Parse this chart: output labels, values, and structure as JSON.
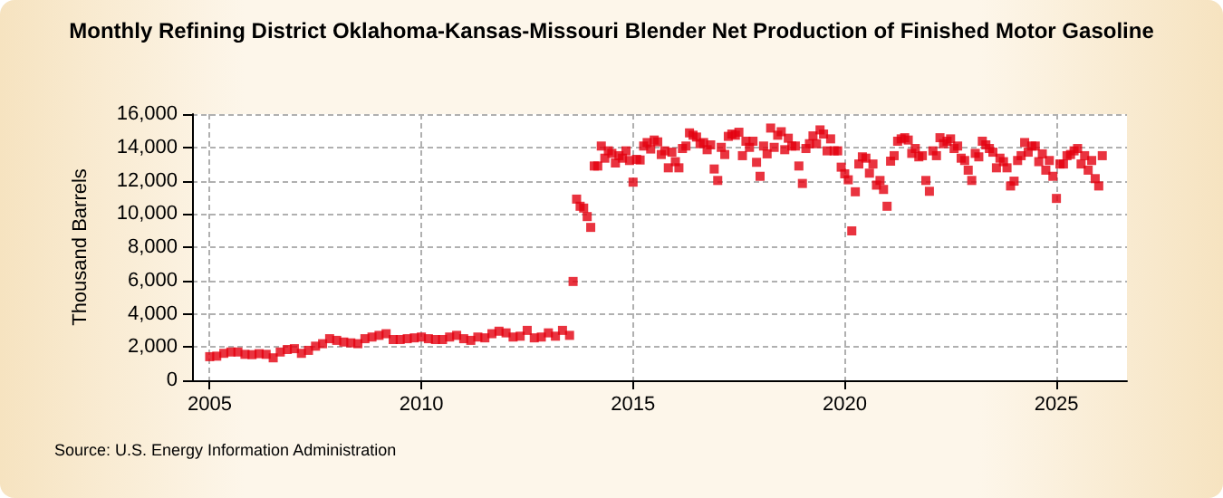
{
  "chart_data": {
    "type": "scatter",
    "title": "Monthly Refining District Oklahoma-Kansas-Missouri Blender Net Production of Finished Motor Gasoline",
    "ylabel": "Thousand Barrels",
    "annotations": [
      "Source: U.S. Energy Information Administration"
    ],
    "marker": "square",
    "grid": true,
    "xlim": [
      "2004-08",
      "2026-09"
    ],
    "xticks": [
      "2005",
      "2010",
      "2015",
      "2020",
      "2025"
    ],
    "ylim": [
      0,
      16000
    ],
    "yticks": [
      0,
      {
        "value": 2000,
        "label": "2,000"
      },
      {
        "value": 4000,
        "label": "4,000"
      },
      {
        "value": 6000,
        "label": "6,000"
      },
      {
        "value": 8000,
        "label": "8,000"
      },
      {
        "value": 10000,
        "label": "10,000"
      },
      {
        "value": 12000,
        "label": "12,000"
      },
      {
        "value": 14000,
        "label": "14,000"
      },
      {
        "value": 16000,
        "label": "16,000"
      }
    ],
    "series": [
      {
        "color": "#e3000f",
        "x": [
          "2005-01",
          "2005-03",
          "2005-05",
          "2005-07",
          "2005-09",
          "2005-11",
          "2006-01",
          "2006-03",
          "2006-05",
          "2006-07",
          "2006-09",
          "2006-11",
          "2007-01",
          "2007-03",
          "2007-05",
          "2007-07",
          "2007-09",
          "2007-11",
          "2008-01",
          "2008-03",
          "2008-05",
          "2008-07",
          "2008-09",
          "2008-11",
          "2009-01",
          "2009-03",
          "2009-05",
          "2009-07",
          "2009-09",
          "2009-11",
          "2010-01",
          "2010-03",
          "2010-05",
          "2010-07",
          "2010-09",
          "2010-11",
          "2011-01",
          "2011-03",
          "2011-05",
          "2011-07",
          "2011-09",
          "2011-11",
          "2012-01",
          "2012-03",
          "2012-05",
          "2012-07",
          "2012-09",
          "2012-11",
          "2013-01",
          "2013-03",
          "2013-05",
          "2013-07"
        ],
        "values": [
          1420,
          1450,
          1620,
          1700,
          1700,
          1560,
          1540,
          1600,
          1560,
          1350,
          1700,
          1850,
          1900,
          1620,
          1800,
          2050,
          2200,
          2500,
          2400,
          2300,
          2250,
          2200,
          2500,
          2600,
          2700,
          2800,
          2450,
          2450,
          2500,
          2550,
          2600,
          2500,
          2450,
          2450,
          2600,
          2700,
          2500,
          2400,
          2600,
          2550,
          2800,
          2950,
          2850,
          2600,
          2650,
          3000,
          2550,
          2600,
          2850,
          2650,
          3000,
          2700
        ]
      },
      {
        "color": "#e3000f",
        "x": [
          "2013-08",
          "2013-09",
          "2013-10",
          "2013-11",
          "2013-12",
          "2014-01",
          "2014-02",
          "2014-03",
          "2014-04",
          "2014-05",
          "2014-06",
          "2014-07",
          "2014-08",
          "2014-09",
          "2014-10",
          "2014-11",
          "2014-12",
          "2015-01",
          "2015-02",
          "2015-03",
          "2015-04",
          "2015-05",
          "2015-06",
          "2015-07",
          "2015-08",
          "2015-09",
          "2015-10",
          "2015-11",
          "2015-12",
          "2016-01",
          "2016-02",
          "2016-03",
          "2016-04",
          "2016-05",
          "2016-06",
          "2016-07",
          "2016-08",
          "2016-09",
          "2016-10",
          "2016-11",
          "2016-12",
          "2017-01",
          "2017-02",
          "2017-03",
          "2017-04",
          "2017-05",
          "2017-06",
          "2017-07",
          "2017-08",
          "2017-09",
          "2017-10",
          "2017-11",
          "2017-12",
          "2018-01",
          "2018-02",
          "2018-03",
          "2018-04",
          "2018-05",
          "2018-06",
          "2018-07",
          "2018-08",
          "2018-09",
          "2018-10",
          "2018-11",
          "2018-12",
          "2019-01",
          "2019-02",
          "2019-03",
          "2019-04",
          "2019-05",
          "2019-06",
          "2019-07",
          "2019-08",
          "2019-09",
          "2019-10",
          "2019-11"
        ],
        "values": [
          5940,
          10890,
          10460,
          10350,
          9840,
          9190,
          12880,
          12880,
          14080,
          13350,
          13790,
          13640,
          13060,
          13500,
          13350,
          13790,
          13210,
          11910,
          13280,
          13240,
          14080,
          14290,
          13900,
          14440,
          14330,
          13570,
          13790,
          12770,
          13710,
          13140,
          12770,
          13930,
          14080,
          14870,
          14730,
          14620,
          14220,
          14290,
          13860,
          14150,
          12700,
          12010,
          14000,
          13570,
          14660,
          14800,
          14730,
          14910,
          13500,
          14370,
          14000,
          14370,
          13100,
          12260,
          14080,
          13610,
          15160,
          14000,
          14730,
          14940,
          13860,
          14550,
          14080,
          14080,
          12880,
          11830,
          13930,
          14220,
          14690,
          14220,
          15050,
          14800,
          13790,
          14510,
          13790,
          13790
        ]
      },
      {
        "color": "#e3000f",
        "x": [
          "2019-12",
          "2020-01",
          "2020-02",
          "2020-03",
          "2020-04",
          "2020-05",
          "2020-06",
          "2020-07",
          "2020-08",
          "2020-09",
          "2020-10",
          "2020-11",
          "2020-12",
          "2021-01",
          "2021-02",
          "2021-03",
          "2021-04",
          "2021-05",
          "2021-06",
          "2021-07",
          "2021-08",
          "2021-09",
          "2021-10",
          "2021-11",
          "2021-12",
          "2022-01",
          "2022-02",
          "2022-03",
          "2022-04",
          "2022-05",
          "2022-06",
          "2022-07",
          "2022-08",
          "2022-09",
          "2022-10",
          "2022-11",
          "2022-12",
          "2023-01",
          "2023-02",
          "2023-03",
          "2023-04",
          "2023-05",
          "2023-06",
          "2023-07",
          "2023-08",
          "2023-09",
          "2023-10",
          "2023-11",
          "2023-12",
          "2024-01",
          "2024-02",
          "2024-03",
          "2024-04",
          "2024-05",
          "2024-06",
          "2024-07",
          "2024-08",
          "2024-09",
          "2024-10",
          "2024-11",
          "2024-12",
          "2025-01",
          "2025-02",
          "2025-03",
          "2025-04",
          "2025-05",
          "2025-06",
          "2025-07",
          "2025-08",
          "2025-09",
          "2025-10",
          "2025-11",
          "2025-12",
          "2026-01",
          "2026-02"
        ],
        "values": [
          12810,
          12410,
          12050,
          8980,
          11330,
          13000,
          13430,
          13350,
          12450,
          13000,
          11730,
          12010,
          11470,
          10460,
          13170,
          13500,
          14370,
          14510,
          14580,
          14440,
          13640,
          13930,
          13430,
          13500,
          12010,
          11360,
          13790,
          13500,
          14580,
          14220,
          14370,
          14510,
          13930,
          14080,
          13350,
          13210,
          12630,
          12010,
          13640,
          13430,
          14370,
          14150,
          13930,
          13710,
          12770,
          13350,
          13140,
          12770,
          11680,
          11970,
          13210,
          13500,
          14290,
          13710,
          14080,
          14080,
          13140,
          13610,
          12630,
          13210,
          12260,
          10930,
          13000,
          13000,
          13500,
          13570,
          13790,
          13930,
          13000,
          13500,
          12630,
          13210,
          12120,
          11680,
          13500
        ]
      }
    ]
  }
}
